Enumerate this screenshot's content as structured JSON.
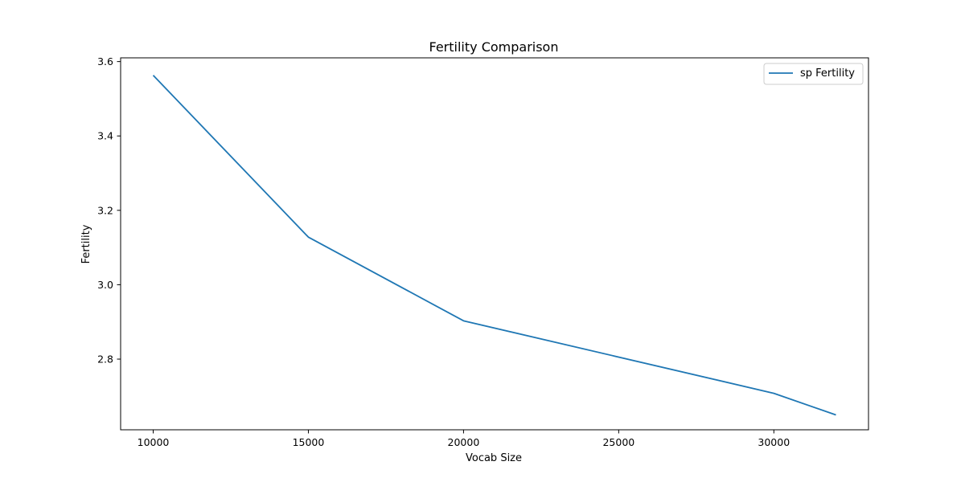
{
  "chart_data": {
    "type": "line",
    "title": "Fertility Comparison",
    "xlabel": "Vocab Size",
    "ylabel": "Fertility",
    "xlim": [
      8950,
      33050
    ],
    "ylim": [
      2.61,
      3.61
    ],
    "x_ticks": [
      10000,
      15000,
      20000,
      25000,
      30000
    ],
    "y_ticks": [
      2.8,
      3.0,
      3.2,
      3.4,
      3.6
    ],
    "x_tick_labels": [
      "10000",
      "15000",
      "20000",
      "25000",
      "30000"
    ],
    "y_tick_labels": [
      "2.8",
      "3.0",
      "3.2",
      "3.4",
      "3.6"
    ],
    "grid": false,
    "legend": "top-right",
    "series": [
      {
        "name": "sp Fertility",
        "color": "#1f77b4",
        "x": [
          10000,
          15000,
          20000,
          30000,
          32000
        ],
        "y": [
          3.563,
          3.128,
          2.903,
          2.708,
          2.65
        ]
      }
    ]
  }
}
